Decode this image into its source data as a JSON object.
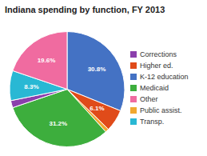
{
  "chart_data": {
    "type": "pie",
    "title": "Indiana spending by function, FY 2013",
    "categories": [
      "K-12 education",
      "Higher ed.",
      "Public assist.",
      "Medicaid",
      "Corrections",
      "Transp.",
      "Other"
    ],
    "values": [
      30.8,
      6.1,
      1.0,
      31.2,
      2.0,
      8.3,
      19.6
    ],
    "value_labels": [
      "30.8%",
      "6.1%",
      null,
      "31.2%",
      null,
      "8.3%",
      "19.6%"
    ],
    "colors": [
      "#4472c4",
      "#e04b1a",
      "#f0a830",
      "#3dae3d",
      "#8b3fac",
      "#29b8d4",
      "#f06ba0"
    ],
    "data_labels": true,
    "legend": "right"
  }
}
